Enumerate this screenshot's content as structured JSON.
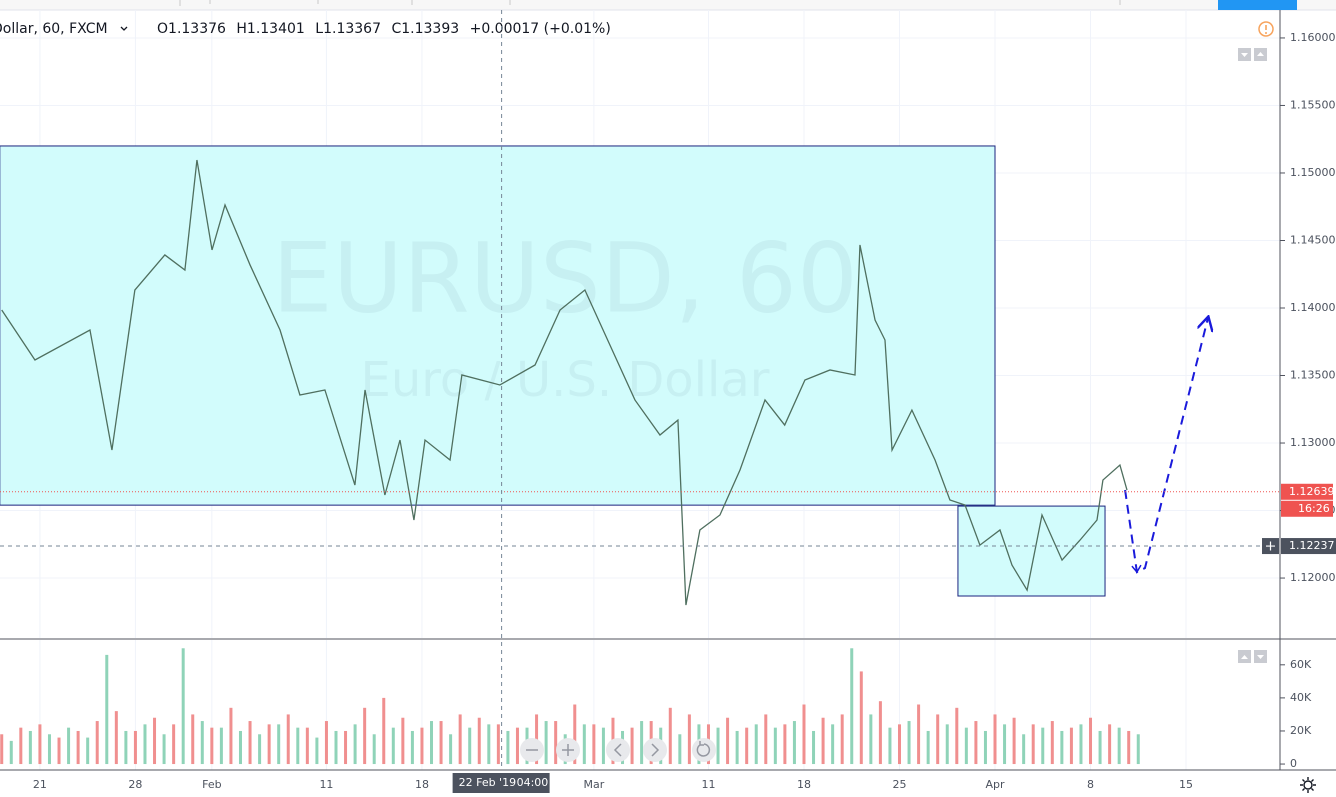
{
  "header": {
    "symbol": "Dollar, 60, FXCM",
    "ohlc": [
      {
        "key": "O",
        "value": 1.13376
      },
      {
        "key": "H",
        "value": 1.13401
      },
      {
        "key": "L",
        "value": 1.13367
      },
      {
        "key": "C",
        "value": 1.13393
      }
    ],
    "change": "+0.00017 (+0.01%)"
  },
  "watermark": {
    "symbol": "EURUSD, 60",
    "description": "Euro / U.S. Dollar"
  },
  "chart_data": [
    {
      "type": "line",
      "color": "#4f6f5f",
      "x": [
        -2.0,
        -0.26,
        2.62,
        3.77,
        4.97,
        6.54,
        7.59,
        8.22,
        9.01,
        9.69,
        11.0,
        12.57,
        13.61,
        14.92,
        16.49,
        17.02,
        18.06,
        18.85,
        19.58,
        20.16,
        21.47,
        22.09,
        24.08,
        25.92,
        27.23,
        28.53,
        29.84,
        31.15,
        32.46,
        33.4,
        33.82,
        34.55,
        35.6,
        36.65,
        37.96,
        38.99,
        40.05,
        41.36,
        42.67,
        42.93,
        43.72,
        44.24,
        44.61,
        45.65,
        46.86,
        47.64,
        48.43,
        49.21,
        50.26,
        50.89,
        51.68,
        52.46,
        53.51,
        54.45,
        55.34,
        55.65,
        56.54,
        56.91
      ],
      "values": [
        1.13985,
        1.13615,
        1.13837,
        1.12948,
        1.14133,
        1.14393,
        1.14281,
        1.15096,
        1.1443,
        1.14763,
        1.14319,
        1.13837,
        1.13356,
        1.13393,
        1.12689,
        1.13393,
        1.12615,
        1.13022,
        1.1243,
        1.13022,
        1.12874,
        1.13504,
        1.1343,
        1.13578,
        1.13985,
        1.14133,
        1.13726,
        1.13319,
        1.13059,
        1.1317,
        1.118,
        1.12356,
        1.12467,
        1.128,
        1.13319,
        1.13133,
        1.13467,
        1.13541,
        1.13504,
        1.14467,
        1.13911,
        1.13763,
        1.12948,
        1.13244,
        1.12874,
        1.12578,
        1.12541,
        1.12244,
        1.12356,
        1.12096,
        1.11911,
        1.12467,
        1.12133,
        1.12281,
        1.1243,
        1.12726,
        1.12837,
        1.12652
      ],
      "xlim": [
        -2.09,
        64.92
      ],
      "xticks": [
        {
          "value": 0,
          "label": "21"
        },
        {
          "value": 5,
          "label": "28"
        },
        {
          "value": 9,
          "label": "Feb"
        },
        {
          "value": 15,
          "label": "11"
        },
        {
          "value": 20,
          "label": "18"
        },
        {
          "value": 29,
          "label": "Mar"
        },
        {
          "value": 35,
          "label": "11"
        },
        {
          "value": 40,
          "label": "18"
        },
        {
          "value": 45,
          "label": "25"
        },
        {
          "value": 50,
          "label": "Apr"
        },
        {
          "value": 55,
          "label": "8"
        },
        {
          "value": 60,
          "label": "15"
        }
      ],
      "ylim": [
        1.11556,
        1.16207
      ],
      "yticks": [
        {
          "value": 1.12,
          "label": "1.12000"
        },
        {
          "value": 1.125,
          "label": "1.12500"
        },
        {
          "value": 1.13,
          "label": "1.13000"
        },
        {
          "value": 1.135,
          "label": "1.13500"
        },
        {
          "value": 1.14,
          "label": "1.14000"
        },
        {
          "value": 1.145,
          "label": "1.14500"
        },
        {
          "value": 1.15,
          "label": "1.15000"
        },
        {
          "value": 1.155,
          "label": "1.15500"
        },
        {
          "value": 1.16,
          "label": "1.16000"
        }
      ],
      "grid": true,
      "zones": [
        {
          "x": [
            -2.1,
            50.0
          ],
          "y": [
            1.1254,
            1.152
          ],
          "color": "#d2fcfc",
          "border": "#1a237e"
        },
        {
          "x": [
            48.06,
            55.76
          ],
          "y": [
            1.11867,
            1.12533
          ],
          "color": "#d2fcfc",
          "border": "#1a237e"
        }
      ],
      "projection": {
        "x": [
          56.81,
          57.43,
          57.85,
          61.15
        ],
        "values": [
          1.12652,
          1.12044,
          1.12074,
          1.13926
        ],
        "color": "#1a1adb"
      },
      "last_price": {
        "value": 1.12639,
        "countdown": "16:26",
        "color": "#ef5350"
      },
      "crosshair": {
        "x": 24.17,
        "date_label": "22 Feb '19",
        "time_label": "04:00",
        "y": 1.12237
      }
    },
    {
      "type": "bar",
      "series": [
        {
          "color": "#f08f8f",
          "x": [
            -2,
            -1,
            0,
            1,
            2,
            3,
            4,
            5,
            6,
            7,
            8,
            9,
            10,
            11,
            12,
            13,
            14,
            15,
            16,
            17,
            18,
            19,
            20,
            21,
            22,
            23,
            24,
            25,
            26,
            27,
            28,
            29,
            30,
            31,
            32,
            33,
            34,
            35,
            36,
            37,
            38,
            39,
            40,
            41,
            42,
            43,
            44,
            45,
            46,
            47,
            48,
            49,
            50,
            51,
            52,
            53,
            54,
            55,
            56,
            57
          ],
          "values": [
            18000,
            22000,
            24000,
            16000,
            20000,
            26000,
            32000,
            20000,
            28000,
            24000,
            30000,
            22000,
            34000,
            26000,
            24000,
            30000,
            22000,
            26000,
            20000,
            34000,
            40000,
            28000,
            22000,
            26000,
            30000,
            28000,
            24000,
            22000,
            30000,
            26000,
            36000,
            24000,
            28000,
            22000,
            26000,
            34000,
            30000,
            24000,
            28000,
            22000,
            30000,
            24000,
            36000,
            28000,
            30000,
            56000,
            38000,
            24000,
            36000,
            30000,
            34000,
            26000,
            30000,
            28000,
            24000,
            26000,
            22000,
            28000,
            24000,
            20000
          ]
        },
        {
          "color": "#8fd3b8",
          "x": [
            -1.5,
            -0.5,
            0.5,
            1.5,
            2.5,
            3.5,
            4.5,
            5.5,
            6.5,
            7.5,
            8.5,
            9.5,
            10.5,
            11.5,
            12.5,
            13.5,
            14.5,
            15.5,
            16.5,
            17.5,
            18.5,
            19.5,
            20.5,
            21.5,
            22.5,
            23.5,
            24.5,
            25.5,
            26.5,
            27.5,
            28.5,
            29.5,
            30.5,
            31.5,
            32.5,
            33.5,
            34.5,
            35.5,
            36.5,
            37.5,
            38.5,
            39.5,
            40.5,
            41.5,
            42.5,
            43.5,
            44.5,
            45.5,
            46.5,
            47.5,
            48.5,
            49.5,
            50.5,
            51.5,
            52.5,
            53.5,
            54.5,
            55.5,
            56.5,
            57.5
          ],
          "values": [
            14000,
            20000,
            18000,
            22000,
            16000,
            66000,
            20000,
            24000,
            18000,
            70000,
            26000,
            22000,
            20000,
            18000,
            24000,
            22000,
            16000,
            20000,
            24000,
            18000,
            22000,
            20000,
            26000,
            18000,
            22000,
            24000,
            20000,
            22000,
            26000,
            18000,
            24000,
            22000,
            20000,
            26000,
            22000,
            18000,
            24000,
            22000,
            20000,
            24000,
            22000,
            26000,
            20000,
            24000,
            70000,
            30000,
            22000,
            26000,
            20000,
            24000,
            22000,
            20000,
            24000,
            18000,
            22000,
            20000,
            24000,
            20000,
            22000,
            18000
          ]
        }
      ],
      "xlim": [
        -2.09,
        64.92
      ],
      "ylim": [
        -3600,
        75000
      ],
      "yticks": [
        0,
        {
          "value": 20000,
          "label": "20K"
        },
        {
          "value": 40000,
          "label": "40K"
        },
        {
          "value": 60000,
          "label": "60K"
        }
      ]
    }
  ]
}
